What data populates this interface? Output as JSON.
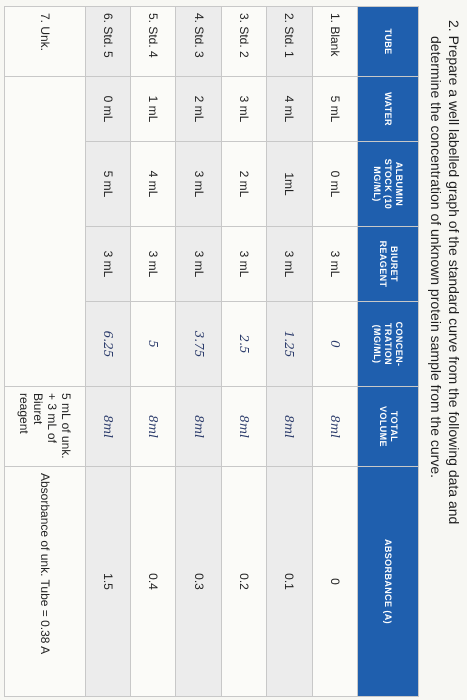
{
  "instruction": {
    "number": "2.",
    "line1": "Prepare a well labelled graph of the standard curve from the following data and",
    "line2": "determine the concentration of unknown protein sample from the curve."
  },
  "table": {
    "headers": [
      "TUBE",
      "WATER",
      "ALBUMIN STOCK (10 MG/ML)",
      "BIURET REAGENT",
      "CONCEN-TRATION (MG/ML)",
      "TOTAL VOLUME",
      "ABSORBANCE (A)"
    ],
    "rows": [
      {
        "tube": "1. Blank",
        "water": "5 mL",
        "albumin": "0 mL",
        "biuret": "3 mL",
        "concentration": "0",
        "total": "8ml",
        "absorbance": "0"
      },
      {
        "tube": "2. Std. 1",
        "water": "4 mL",
        "albumin": "1mL",
        "biuret": "3 mL",
        "concentration": "1.25",
        "total": "8ml",
        "absorbance": "0.1"
      },
      {
        "tube": "3. Std. 2",
        "water": "3 mL",
        "albumin": "2 mL",
        "biuret": "3 mL",
        "concentration": "2.5",
        "total": "8ml",
        "absorbance": "0.2"
      },
      {
        "tube": "4. Std. 3",
        "water": "2 mL",
        "albumin": "3 mL",
        "biuret": "3 mL",
        "concentration": "3.75",
        "total": "8ml",
        "absorbance": "0.3"
      },
      {
        "tube": "5. Std. 4",
        "water": "1 mL",
        "albumin": "4 mL",
        "biuret": "3 mL",
        "concentration": "5",
        "total": "8ml",
        "absorbance": "0.4"
      },
      {
        "tube": "6. Std. 5",
        "water": "0 mL",
        "albumin": "5 mL",
        "biuret": "3 mL",
        "concentration": "6.25",
        "total": "8ml",
        "absorbance": "1.5"
      }
    ],
    "unknown": {
      "tube": "7. Unk.",
      "volume_note": "5 mL of unk. + 3 mL of Biuret reagent",
      "absorbance_note": "Absorbance of unk. Tube = 0.38 A"
    }
  },
  "colors": {
    "header_bg": "#1f5fae",
    "header_text": "#ffffff",
    "handwriting": "#2a3a6a"
  }
}
